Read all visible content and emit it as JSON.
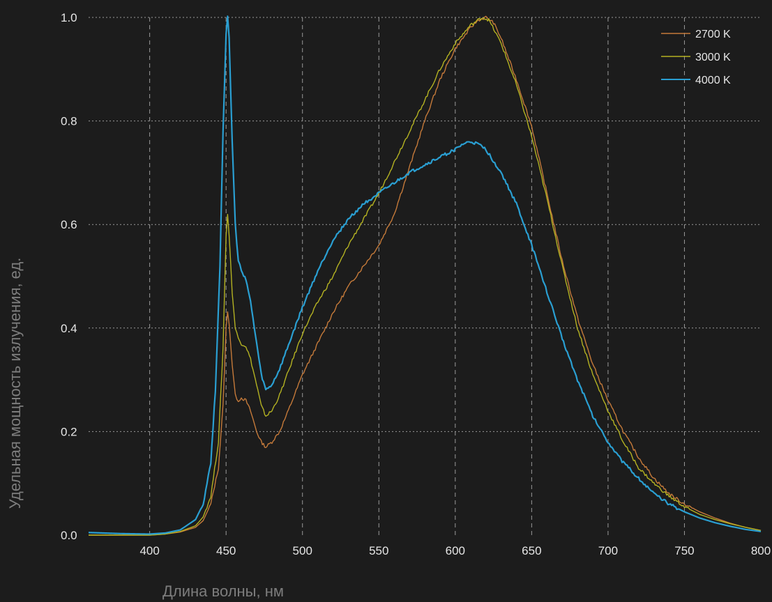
{
  "chart_data": {
    "type": "line",
    "title": "",
    "xlabel": "Длина волны, нм",
    "ylabel": "Удельная мощность излучения, ед.",
    "xlim": [
      360,
      800
    ],
    "ylim": [
      0,
      1.0
    ],
    "x_ticks": [
      400,
      450,
      500,
      550,
      600,
      650,
      700,
      750,
      800
    ],
    "y_ticks": [
      0.0,
      0.2,
      0.4,
      0.6,
      0.8,
      1.0
    ],
    "x_tick_labels": [
      "400",
      "450",
      "500",
      "550",
      "600",
      "650",
      "700",
      "750",
      "800"
    ],
    "y_tick_labels": [
      "0.0",
      "0.2",
      "0.4",
      "0.6",
      "0.8",
      "1.0"
    ],
    "grid": true,
    "legend_position": "top-right",
    "series": [
      {
        "name": "2700 K",
        "color": "#c57a3a",
        "points": [
          [
            360,
            0.0
          ],
          [
            400,
            0.0
          ],
          [
            410,
            0.002
          ],
          [
            420,
            0.006
          ],
          [
            430,
            0.015
          ],
          [
            435,
            0.028
          ],
          [
            440,
            0.06
          ],
          [
            445,
            0.13
          ],
          [
            448,
            0.25
          ],
          [
            450,
            0.4
          ],
          [
            451,
            0.43
          ],
          [
            452,
            0.41
          ],
          [
            454,
            0.33
          ],
          [
            456,
            0.27
          ],
          [
            458,
            0.26
          ],
          [
            460,
            0.265
          ],
          [
            463,
            0.26
          ],
          [
            466,
            0.24
          ],
          [
            470,
            0.2
          ],
          [
            473,
            0.18
          ],
          [
            476,
            0.17
          ],
          [
            480,
            0.18
          ],
          [
            485,
            0.2
          ],
          [
            490,
            0.235
          ],
          [
            500,
            0.31
          ],
          [
            510,
            0.37
          ],
          [
            520,
            0.43
          ],
          [
            530,
            0.48
          ],
          [
            540,
            0.52
          ],
          [
            550,
            0.56
          ],
          [
            560,
            0.62
          ],
          [
            570,
            0.71
          ],
          [
            580,
            0.8
          ],
          [
            590,
            0.88
          ],
          [
            600,
            0.94
          ],
          [
            610,
            0.98
          ],
          [
            615,
            0.995
          ],
          [
            620,
            1.0
          ],
          [
            625,
            0.99
          ],
          [
            630,
            0.96
          ],
          [
            640,
            0.88
          ],
          [
            650,
            0.79
          ],
          [
            660,
            0.66
          ],
          [
            670,
            0.53
          ],
          [
            680,
            0.42
          ],
          [
            690,
            0.33
          ],
          [
            700,
            0.26
          ],
          [
            710,
            0.2
          ],
          [
            720,
            0.15
          ],
          [
            730,
            0.11
          ],
          [
            740,
            0.08
          ],
          [
            750,
            0.06
          ],
          [
            760,
            0.045
          ],
          [
            770,
            0.033
          ],
          [
            780,
            0.023
          ],
          [
            790,
            0.015
          ],
          [
            800,
            0.009
          ]
        ]
      },
      {
        "name": "3000 K",
        "color": "#b4b222",
        "points": [
          [
            360,
            0.0
          ],
          [
            400,
            0.0
          ],
          [
            410,
            0.002
          ],
          [
            420,
            0.007
          ],
          [
            430,
            0.018
          ],
          [
            435,
            0.035
          ],
          [
            440,
            0.075
          ],
          [
            445,
            0.18
          ],
          [
            448,
            0.36
          ],
          [
            450,
            0.58
          ],
          [
            451,
            0.62
          ],
          [
            452,
            0.58
          ],
          [
            454,
            0.47
          ],
          [
            456,
            0.4
          ],
          [
            458,
            0.38
          ],
          [
            460,
            0.37
          ],
          [
            463,
            0.365
          ],
          [
            466,
            0.34
          ],
          [
            470,
            0.29
          ],
          [
            473,
            0.25
          ],
          [
            476,
            0.23
          ],
          [
            480,
            0.24
          ],
          [
            485,
            0.27
          ],
          [
            490,
            0.31
          ],
          [
            500,
            0.39
          ],
          [
            510,
            0.45
          ],
          [
            520,
            0.5
          ],
          [
            530,
            0.56
          ],
          [
            540,
            0.61
          ],
          [
            550,
            0.66
          ],
          [
            560,
            0.72
          ],
          [
            570,
            0.78
          ],
          [
            580,
            0.84
          ],
          [
            590,
            0.9
          ],
          [
            600,
            0.95
          ],
          [
            610,
            0.985
          ],
          [
            615,
            0.995
          ],
          [
            618,
            1.0
          ],
          [
            622,
            0.995
          ],
          [
            630,
            0.95
          ],
          [
            640,
            0.87
          ],
          [
            650,
            0.77
          ],
          [
            660,
            0.65
          ],
          [
            670,
            0.52
          ],
          [
            680,
            0.4
          ],
          [
            690,
            0.31
          ],
          [
            700,
            0.24
          ],
          [
            710,
            0.18
          ],
          [
            720,
            0.13
          ],
          [
            730,
            0.1
          ],
          [
            740,
            0.075
          ],
          [
            750,
            0.055
          ],
          [
            760,
            0.04
          ],
          [
            770,
            0.03
          ],
          [
            780,
            0.022
          ],
          [
            790,
            0.015
          ],
          [
            800,
            0.009
          ]
        ]
      },
      {
        "name": "4000 K",
        "color": "#2a9fd2",
        "points": [
          [
            360,
            0.005
          ],
          [
            380,
            0.003
          ],
          [
            400,
            0.002
          ],
          [
            410,
            0.004
          ],
          [
            420,
            0.01
          ],
          [
            430,
            0.03
          ],
          [
            435,
            0.06
          ],
          [
            440,
            0.14
          ],
          [
            443,
            0.28
          ],
          [
            446,
            0.52
          ],
          [
            448,
            0.78
          ],
          [
            450,
            0.97
          ],
          [
            451,
            1.0
          ],
          [
            452,
            0.96
          ],
          [
            454,
            0.76
          ],
          [
            456,
            0.6
          ],
          [
            458,
            0.53
          ],
          [
            460,
            0.51
          ],
          [
            463,
            0.495
          ],
          [
            466,
            0.45
          ],
          [
            470,
            0.37
          ],
          [
            473,
            0.31
          ],
          [
            476,
            0.28
          ],
          [
            480,
            0.29
          ],
          [
            485,
            0.32
          ],
          [
            490,
            0.36
          ],
          [
            500,
            0.44
          ],
          [
            510,
            0.51
          ],
          [
            520,
            0.57
          ],
          [
            530,
            0.61
          ],
          [
            540,
            0.64
          ],
          [
            550,
            0.66
          ],
          [
            560,
            0.68
          ],
          [
            570,
            0.7
          ],
          [
            580,
            0.715
          ],
          [
            590,
            0.73
          ],
          [
            600,
            0.745
          ],
          [
            605,
            0.755
          ],
          [
            610,
            0.76
          ],
          [
            615,
            0.755
          ],
          [
            620,
            0.745
          ],
          [
            630,
            0.7
          ],
          [
            640,
            0.64
          ],
          [
            650,
            0.56
          ],
          [
            660,
            0.47
          ],
          [
            670,
            0.38
          ],
          [
            680,
            0.3
          ],
          [
            690,
            0.23
          ],
          [
            700,
            0.18
          ],
          [
            710,
            0.14
          ],
          [
            720,
            0.11
          ],
          [
            730,
            0.08
          ],
          [
            740,
            0.06
          ],
          [
            750,
            0.045
          ],
          [
            760,
            0.033
          ],
          [
            770,
            0.024
          ],
          [
            780,
            0.017
          ],
          [
            790,
            0.011
          ],
          [
            800,
            0.007
          ]
        ]
      }
    ]
  }
}
